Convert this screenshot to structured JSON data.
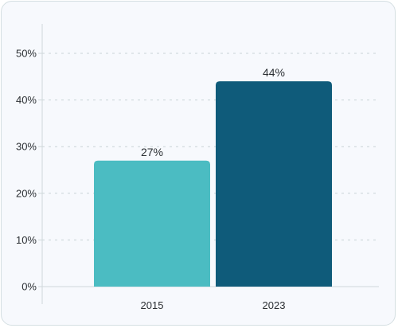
{
  "chart_data": {
    "type": "bar",
    "title": "",
    "xlabel": "",
    "ylabel": "",
    "categories": [
      "2015",
      "2023"
    ],
    "values": [
      27,
      44
    ],
    "value_labels": [
      "27%",
      "44%"
    ],
    "ylim": [
      0,
      50
    ],
    "yticks": [
      0,
      10,
      20,
      30,
      40,
      50
    ],
    "ytick_labels": [
      "0%",
      "10%",
      "20%",
      "30%",
      "40%",
      "50%"
    ],
    "grid": true,
    "legend": "none",
    "colors": [
      "#4bbcc2",
      "#0f5b7a"
    ]
  }
}
